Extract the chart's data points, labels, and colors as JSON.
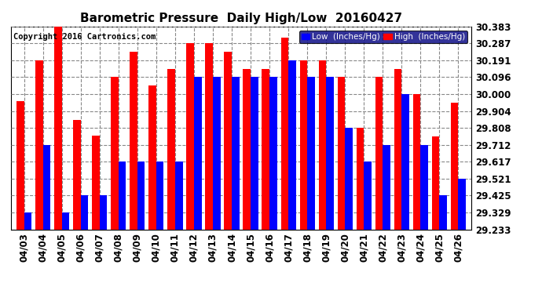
{
  "title": "Barometric Pressure  Daily High/Low  20160427",
  "copyright": "Copyright 2016 Cartronics.com",
  "legend_low": "Low  (Inches/Hg)",
  "legend_high": "High  (Inches/Hg)",
  "color_low": "#0000ff",
  "color_high": "#ff0000",
  "bg_color": "#ffffff",
  "dates": [
    "04/03",
    "04/04",
    "04/05",
    "04/06",
    "04/07",
    "04/08",
    "04/09",
    "04/10",
    "04/11",
    "04/12",
    "04/13",
    "04/14",
    "04/15",
    "04/16",
    "04/17",
    "04/18",
    "04/19",
    "04/20",
    "04/21",
    "04/22",
    "04/23",
    "04/24",
    "04/25",
    "04/26"
  ],
  "high": [
    29.96,
    30.191,
    30.383,
    29.855,
    29.766,
    30.096,
    30.24,
    30.048,
    30.144,
    30.287,
    30.287,
    30.24,
    30.144,
    30.144,
    30.319,
    30.191,
    30.191,
    30.096,
    29.808,
    30.096,
    30.144,
    30.0,
    29.76,
    29.952
  ],
  "low": [
    29.329,
    29.712,
    29.329,
    29.425,
    29.425,
    29.617,
    29.617,
    29.617,
    29.617,
    30.096,
    30.096,
    30.096,
    30.096,
    30.096,
    30.191,
    30.096,
    30.096,
    29.808,
    29.617,
    29.712,
    30.0,
    29.712,
    29.425,
    29.521
  ],
  "ymin": 29.233,
  "ymax": 30.383,
  "yticks": [
    29.233,
    29.329,
    29.425,
    29.521,
    29.617,
    29.712,
    29.808,
    29.904,
    30.0,
    30.096,
    30.191,
    30.287,
    30.383
  ],
  "title_fontsize": 11,
  "tick_fontsize": 8.5,
  "copyright_fontsize": 7.5
}
